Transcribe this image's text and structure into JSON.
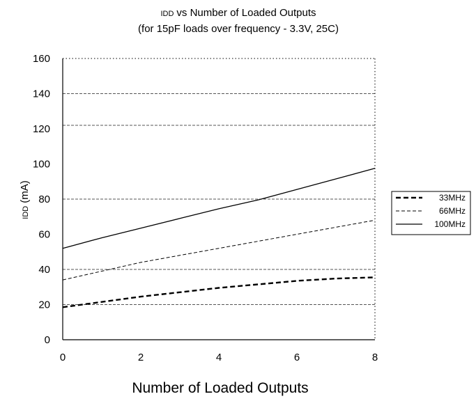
{
  "chart_data": {
    "type": "line",
    "title_main": "vs Number of Loaded Outputs",
    "title_symbol": "IDD",
    "subtitle": "(for 15pF loads over frequency - 3.3V, 25C)",
    "xlabel": "Number of Loaded Outputs",
    "ylabel_symbol": "IDD",
    "ylabel_unit": "(mA)",
    "x_ticks": [
      0,
      2,
      4,
      6,
      8
    ],
    "y_ticks": [
      0,
      20,
      40,
      60,
      80,
      100,
      120,
      140,
      160
    ],
    "xlim": [
      0,
      8
    ],
    "ylim": [
      0,
      160
    ],
    "gridlines": [
      20,
      40,
      80,
      122,
      140,
      160
    ],
    "x": [
      0,
      1,
      2,
      3,
      4,
      5,
      6,
      7,
      8
    ],
    "series": [
      {
        "name": "33MHz",
        "style": "dash-thick",
        "values": [
          18.5,
          21.5,
          24.5,
          27,
          29.5,
          31.5,
          33.5,
          34.8,
          35.5
        ]
      },
      {
        "name": "66MHz",
        "style": "dash-thin",
        "values": [
          34,
          39,
          44,
          48,
          52,
          56,
          60,
          64,
          68
        ]
      },
      {
        "name": "100MHz",
        "style": "solid",
        "values": [
          52,
          58,
          63.5,
          69,
          74.5,
          79.5,
          85.5,
          91.5,
          97.5
        ]
      }
    ],
    "legend_position": "right",
    "colors": {
      "line": "#000000",
      "grid": "#555555",
      "background": "#ffffff"
    }
  }
}
